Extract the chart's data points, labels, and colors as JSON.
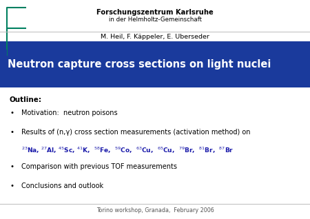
{
  "background_color": "#ffffff",
  "header_line1": "Forschungszentrum Karlsruhe",
  "header_line2": "in der Helmholtz-Gemeinschaft",
  "authors": "M. Heil, F. Käppeler, E. Uberseder",
  "title_text": "Neutron capture cross sections on light nuclei",
  "title_bg_color": "#1a3a9c",
  "title_text_color": "#ffffff",
  "outline_label": "Outline:",
  "bullets": [
    "Motivation:  neutron poisons",
    "Results of (n,γ) cross section measurements (activation method) on",
    "Comparison with previous TOF measurements",
    "Conclusions and outlook"
  ],
  "nuclei_line": "$^{23}$Na, $^{27}$Al, $^{45}$Sc, $^{41}$K,  $^{58}$Fe,  $^{59}$Co,  $^{63}$Cu,  $^{65}$Cu,  $^{79}$Br,  $^{81}$Br,  $^{87}$Br",
  "nuclei_color": "#1a1aaa",
  "footer": "Torino workshop, Granada,  February 2006",
  "logo_color": "#008060",
  "separator_color": "#bbbbbb"
}
